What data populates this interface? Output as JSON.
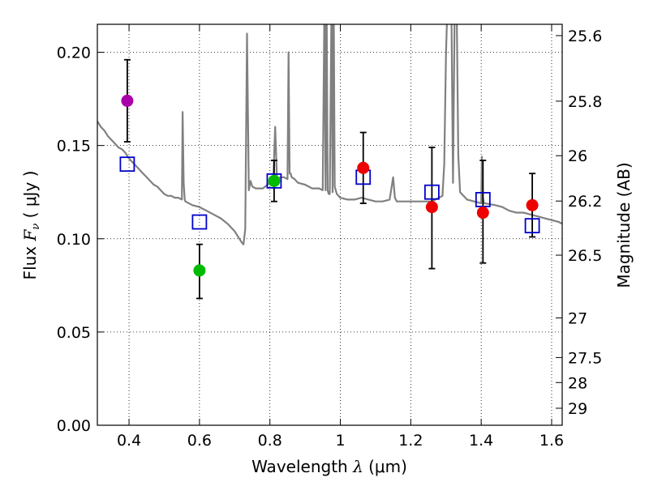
{
  "chart_data": {
    "type": "scatter",
    "xlabel": {
      "prefix": "Wavelength",
      "symbol": "λ",
      "unit": "(μm)"
    },
    "ylabel": {
      "prefix": "Flux",
      "symbol": "F",
      "subscript": "ν",
      "unit": "( μJy )"
    },
    "y2label": "Magnitude (AB)",
    "xlim": [
      0.31,
      1.63
    ],
    "ylim": [
      0.0,
      0.215
    ],
    "grid": true,
    "xticks": [
      0.4,
      0.6,
      0.8,
      1.0,
      1.2,
      1.4,
      1.6
    ],
    "xtick_labels": [
      "0.4",
      "0.6",
      "0.8",
      "1",
      "1.2",
      "1.4",
      "1.6"
    ],
    "yticks": [
      0.0,
      0.05,
      0.1,
      0.15,
      0.2
    ],
    "ytick_labels": [
      "0.00",
      "0.05",
      "0.10",
      "0.15",
      "0.20"
    ],
    "y2ticks": [
      {
        "mag": 25.6,
        "label": "25.6"
      },
      {
        "mag": 25.8,
        "label": "25.8"
      },
      {
        "mag": 26.0,
        "label": "26"
      },
      {
        "mag": 26.2,
        "label": "26.2"
      },
      {
        "mag": 26.5,
        "label": "26.5"
      },
      {
        "mag": 27.0,
        "label": "27"
      },
      {
        "mag": 27.5,
        "label": "27.5"
      },
      {
        "mag": 28.0,
        "label": "28"
      },
      {
        "mag": 29.0,
        "label": "29"
      }
    ],
    "colors": {
      "template": "#808080",
      "model": "#0000cc",
      "errorbar": "#000000",
      "purple": "#aa00aa",
      "green": "#00bb00",
      "red": "#ee0000"
    },
    "template_spectrum": {
      "name": "model spectrum",
      "x": [
        0.31,
        0.32,
        0.33,
        0.34,
        0.35,
        0.36,
        0.37,
        0.38,
        0.39,
        0.4,
        0.41,
        0.42,
        0.43,
        0.44,
        0.45,
        0.46,
        0.47,
        0.48,
        0.49,
        0.5,
        0.51,
        0.52,
        0.53,
        0.54,
        0.55,
        0.552,
        0.555,
        0.558,
        0.56,
        0.58,
        0.6,
        0.62,
        0.64,
        0.66,
        0.68,
        0.7,
        0.72,
        0.725,
        0.73,
        0.735,
        0.74,
        0.745,
        0.75,
        0.76,
        0.78,
        0.8,
        0.81,
        0.815,
        0.82,
        0.83,
        0.84,
        0.85,
        0.853,
        0.856,
        0.859,
        0.862,
        0.87,
        0.88,
        0.9,
        0.92,
        0.94,
        0.95,
        0.955,
        0.958,
        0.961,
        0.964,
        0.967,
        0.97,
        0.975,
        0.978,
        0.981,
        0.984,
        0.987,
        0.99,
        1.0,
        1.02,
        1.04,
        1.06,
        1.08,
        1.1,
        1.12,
        1.14,
        1.15,
        1.155,
        1.16,
        1.18,
        1.2,
        1.22,
        1.24,
        1.26,
        1.28,
        1.29,
        1.295,
        1.3,
        1.305,
        1.31,
        1.315,
        1.32,
        1.325,
        1.33,
        1.335,
        1.34,
        1.36,
        1.38,
        1.4,
        1.402,
        1.405,
        1.408,
        1.41,
        1.44,
        1.46,
        1.48,
        1.5,
        1.52,
        1.54,
        1.56,
        1.58,
        1.6,
        1.62,
        1.63
      ],
      "y": [
        0.163,
        0.16,
        0.158,
        0.155,
        0.153,
        0.151,
        0.149,
        0.148,
        0.146,
        0.143,
        0.141,
        0.139,
        0.137,
        0.135,
        0.133,
        0.131,
        0.129,
        0.128,
        0.126,
        0.124,
        0.123,
        0.123,
        0.122,
        0.122,
        0.121,
        0.168,
        0.13,
        0.121,
        0.12,
        0.118,
        0.117,
        0.115,
        0.113,
        0.111,
        0.108,
        0.104,
        0.098,
        0.097,
        0.105,
        0.21,
        0.126,
        0.131,
        0.128,
        0.127,
        0.127,
        0.13,
        0.133,
        0.16,
        0.132,
        0.133,
        0.133,
        0.132,
        0.2,
        0.135,
        0.135,
        0.133,
        0.132,
        0.13,
        0.129,
        0.127,
        0.127,
        0.126,
        0.23,
        0.126,
        0.23,
        0.126,
        0.124,
        0.124,
        0.23,
        0.125,
        0.23,
        0.128,
        0.126,
        0.124,
        0.122,
        0.121,
        0.121,
        0.122,
        0.121,
        0.12,
        0.12,
        0.121,
        0.133,
        0.122,
        0.12,
        0.12,
        0.12,
        0.12,
        0.12,
        0.12,
        0.122,
        0.123,
        0.14,
        0.2,
        0.23,
        0.23,
        0.23,
        0.13,
        0.23,
        0.23,
        0.145,
        0.125,
        0.121,
        0.12,
        0.119,
        0.144,
        0.122,
        0.119,
        0.119,
        0.118,
        0.117,
        0.115,
        0.114,
        0.114,
        0.113,
        0.112,
        0.111,
        0.11,
        0.109,
        0.108
      ]
    },
    "model_photometry": {
      "name": "model fluxes",
      "marker": "open square",
      "x": [
        0.395,
        0.6,
        0.812,
        1.065,
        1.26,
        1.405,
        1.545
      ],
      "y": [
        0.14,
        0.109,
        0.131,
        0.133,
        0.125,
        0.121,
        0.107
      ]
    },
    "observed": [
      {
        "x": 0.395,
        "y": 0.174,
        "yerr_low": 0.152,
        "yerr_high": 0.196,
        "color": "purple"
      },
      {
        "x": 0.6,
        "y": 0.083,
        "yerr_low": 0.068,
        "yerr_high": 0.097,
        "color": "green"
      },
      {
        "x": 0.812,
        "y": 0.131,
        "yerr_low": 0.12,
        "yerr_high": 0.142,
        "color": "green"
      },
      {
        "x": 1.065,
        "y": 0.138,
        "yerr_low": 0.119,
        "yerr_high": 0.157,
        "color": "red"
      },
      {
        "x": 1.26,
        "y": 0.117,
        "yerr_low": 0.084,
        "yerr_high": 0.149,
        "color": "red"
      },
      {
        "x": 1.405,
        "y": 0.114,
        "yerr_low": 0.087,
        "yerr_high": 0.142,
        "color": "red"
      },
      {
        "x": 1.545,
        "y": 0.118,
        "yerr_low": 0.101,
        "yerr_high": 0.135,
        "color": "red"
      }
    ]
  }
}
